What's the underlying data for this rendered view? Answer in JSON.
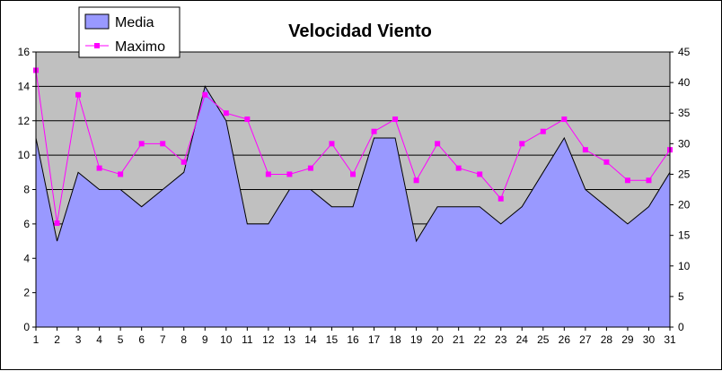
{
  "chart_data": {
    "type": "area",
    "title": "Velocidad Viento",
    "x": [
      1,
      2,
      3,
      4,
      5,
      6,
      7,
      8,
      9,
      10,
      11,
      12,
      13,
      14,
      15,
      16,
      17,
      18,
      19,
      20,
      21,
      22,
      23,
      24,
      25,
      26,
      27,
      28,
      29,
      30,
      31
    ],
    "series": [
      {
        "name": "Media",
        "type": "area",
        "axis": "left",
        "color": "#9999ff",
        "values": [
          11,
          5,
          9,
          8,
          8,
          7,
          8,
          9,
          14,
          12,
          6,
          6,
          8,
          8,
          7,
          7,
          11,
          11,
          5,
          7,
          7,
          7,
          6,
          7,
          9,
          11,
          8,
          7,
          6,
          7,
          9
        ]
      },
      {
        "name": "Maximo",
        "type": "line",
        "axis": "right",
        "color": "#ff00ff",
        "values": [
          42,
          17,
          38,
          26,
          25,
          30,
          30,
          27,
          38,
          35,
          34,
          25,
          25,
          26,
          30,
          25,
          32,
          34,
          24,
          30,
          26,
          25,
          21,
          30,
          32,
          34,
          29,
          27,
          24,
          24,
          29
        ]
      }
    ],
    "ylim_left": [
      0,
      16
    ],
    "yticks_left": [
      0,
      2,
      4,
      6,
      8,
      10,
      12,
      14,
      16
    ],
    "ylim_right": [
      0,
      45
    ],
    "yticks_right": [
      0,
      5,
      10,
      15,
      20,
      25,
      30,
      35,
      40,
      45
    ],
    "grid": true,
    "plot_background": "#c0c0c0",
    "legend_position": "top-left"
  }
}
